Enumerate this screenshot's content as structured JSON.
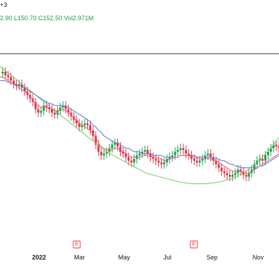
{
  "legend": {
    "top_text": "+3",
    "ohlc_text": "2.90  L150.70  C152.50  Vol2.971M"
  },
  "chart_data": {
    "type": "line",
    "x_ticks": [
      "2022",
      "Mar",
      "May",
      "Jul",
      "Sep",
      "Nov"
    ],
    "x_tick_positions": [
      0.14,
      0.285,
      0.445,
      0.6,
      0.76,
      0.925
    ],
    "earnings_markers": [
      "E",
      "E"
    ],
    "earnings_marker_positions": [
      0.275,
      0.695
    ],
    "y_range": [
      0,
      1
    ],
    "price": [
      0.92,
      0.93,
      0.91,
      0.9,
      0.88,
      0.86,
      0.85,
      0.86,
      0.84,
      0.82,
      0.8,
      0.78,
      0.76,
      0.72,
      0.7,
      0.71,
      0.74,
      0.73,
      0.72,
      0.7,
      0.69,
      0.71,
      0.73,
      0.74,
      0.72,
      0.7,
      0.68,
      0.66,
      0.64,
      0.62,
      0.63,
      0.64,
      0.63,
      0.6,
      0.57,
      0.52,
      0.48,
      0.46,
      0.47,
      0.48,
      0.5,
      0.52,
      0.53,
      0.51,
      0.48,
      0.47,
      0.45,
      0.43,
      0.42,
      0.44,
      0.46,
      0.47,
      0.48,
      0.49,
      0.47,
      0.45,
      0.44,
      0.43,
      0.42,
      0.41,
      0.42,
      0.44,
      0.45,
      0.46,
      0.48,
      0.49,
      0.5,
      0.49,
      0.47,
      0.46,
      0.44,
      0.43,
      0.42,
      0.43,
      0.44,
      0.46,
      0.47,
      0.45,
      0.43,
      0.41,
      0.39,
      0.37,
      0.36,
      0.35,
      0.34,
      0.35,
      0.36,
      0.38,
      0.37,
      0.35,
      0.34,
      0.36,
      0.38,
      0.41,
      0.43,
      0.44,
      0.43,
      0.46,
      0.48,
      0.5,
      0.52,
      0.51,
      0.5
    ],
    "ma_fast": [
      0.9,
      0.9,
      0.89,
      0.88,
      0.87,
      0.86,
      0.85,
      0.84,
      0.83,
      0.82,
      0.81,
      0.79,
      0.77,
      0.75,
      0.74,
      0.73,
      0.73,
      0.73,
      0.72,
      0.72,
      0.71,
      0.71,
      0.72,
      0.72,
      0.71,
      0.7,
      0.69,
      0.67,
      0.66,
      0.64,
      0.63,
      0.62,
      0.61,
      0.6,
      0.58,
      0.56,
      0.53,
      0.51,
      0.5,
      0.49,
      0.49,
      0.49,
      0.5,
      0.5,
      0.49,
      0.48,
      0.47,
      0.46,
      0.45,
      0.45,
      0.45,
      0.45,
      0.46,
      0.46,
      0.46,
      0.46,
      0.45,
      0.45,
      0.44,
      0.44,
      0.43,
      0.43,
      0.44,
      0.44,
      0.45,
      0.45,
      0.46,
      0.46,
      0.46,
      0.46,
      0.45,
      0.45,
      0.44,
      0.44,
      0.44,
      0.44,
      0.44,
      0.44,
      0.43,
      0.43,
      0.42,
      0.41,
      0.4,
      0.39,
      0.38,
      0.37,
      0.37,
      0.37,
      0.37,
      0.36,
      0.36,
      0.36,
      0.37,
      0.38,
      0.39,
      0.4,
      0.41,
      0.42,
      0.43,
      0.44,
      0.45,
      0.46,
      0.47
    ],
    "ma_slow": [
      0.88,
      0.88,
      0.88,
      0.87,
      0.87,
      0.86,
      0.86,
      0.85,
      0.85,
      0.84,
      0.83,
      0.82,
      0.81,
      0.8,
      0.79,
      0.78,
      0.77,
      0.76,
      0.75,
      0.75,
      0.74,
      0.74,
      0.74,
      0.74,
      0.73,
      0.73,
      0.72,
      0.71,
      0.7,
      0.69,
      0.68,
      0.67,
      0.66,
      0.65,
      0.63,
      0.62,
      0.6,
      0.59,
      0.57,
      0.56,
      0.55,
      0.54,
      0.53,
      0.53,
      0.52,
      0.51,
      0.5,
      0.5,
      0.49,
      0.48,
      0.48,
      0.48,
      0.47,
      0.47,
      0.47,
      0.47,
      0.46,
      0.46,
      0.46,
      0.46,
      0.45,
      0.45,
      0.45,
      0.45,
      0.45,
      0.45,
      0.46,
      0.46,
      0.46,
      0.46,
      0.46,
      0.46,
      0.45,
      0.45,
      0.45,
      0.45,
      0.45,
      0.45,
      0.44,
      0.44,
      0.44,
      0.43,
      0.43,
      0.42,
      0.41,
      0.41,
      0.4,
      0.4,
      0.39,
      0.39,
      0.39,
      0.39,
      0.39,
      0.39,
      0.39,
      0.4,
      0.4,
      0.41,
      0.42,
      0.43,
      0.44,
      0.45,
      0.46
    ],
    "curve_fit": [
      0.96,
      0.93,
      0.9,
      0.87,
      0.84,
      0.81,
      0.78,
      0.75,
      0.72,
      0.69,
      0.66,
      0.63,
      0.6,
      0.57,
      0.54,
      0.51,
      0.48,
      0.46,
      0.44,
      0.42,
      0.4,
      0.38,
      0.36,
      0.35,
      0.34,
      0.33,
      0.32,
      0.31,
      0.305,
      0.3,
      0.3,
      0.3,
      0.305,
      0.31,
      0.32,
      0.33,
      0.35,
      0.37,
      0.4,
      0.43,
      0.47,
      0.51,
      0.56
    ],
    "colors": {
      "up": "#1a9e4a",
      "down": "#e0364a",
      "ma_fast": "#f05a6e",
      "ma_slow": "#4a78e0",
      "curve_fit": "#7cc46b",
      "top_line": "#333333",
      "axis_text": "#131722"
    }
  }
}
